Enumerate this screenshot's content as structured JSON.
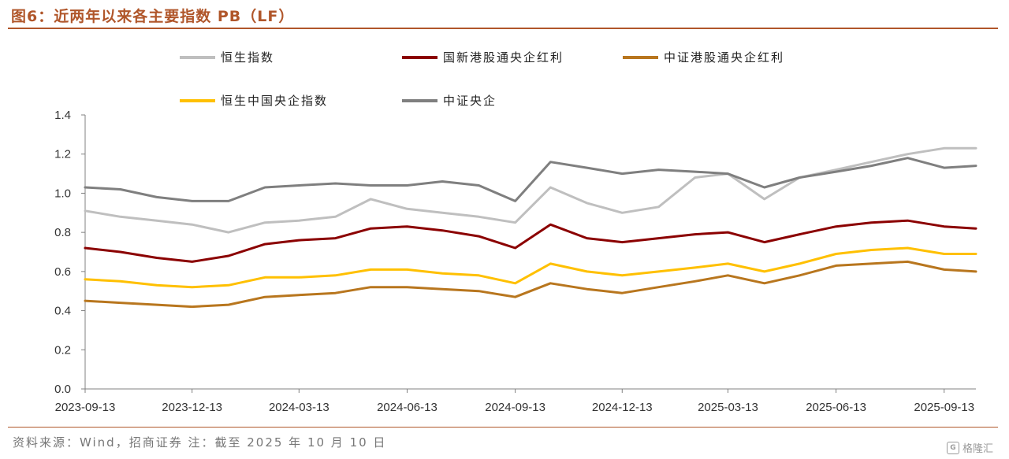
{
  "header": {
    "title": "图6：近两年以来各主要指数 PB（LF）"
  },
  "footer": {
    "source": "资料来源：Wind，招商证券    注：截至 2025 年 10 月 10 日",
    "watermark": "格隆汇"
  },
  "chart_data": {
    "type": "line",
    "x": [
      "2023-09-13",
      "2023-10-13",
      "2023-11-13",
      "2023-12-13",
      "2024-01-13",
      "2024-02-13",
      "2024-03-13",
      "2024-04-13",
      "2024-05-13",
      "2024-06-13",
      "2024-07-13",
      "2024-08-13",
      "2024-09-13",
      "2024-10-13",
      "2024-11-13",
      "2024-12-13",
      "2025-01-13",
      "2025-02-13",
      "2025-03-13",
      "2025-04-13",
      "2025-05-13",
      "2025-06-13",
      "2025-07-13",
      "2025-08-13",
      "2025-09-13",
      "2025-10-10"
    ],
    "x_tick_labels": [
      "2023-09-13",
      "2023-12-13",
      "2024-03-13",
      "2024-06-13",
      "2024-09-13",
      "2024-12-13",
      "2025-03-13",
      "2025-06-13",
      "2025-09-13"
    ],
    "ylim": [
      0.0,
      1.4
    ],
    "y_ticks": [
      "0.0",
      "0.2",
      "0.4",
      "0.6",
      "0.8",
      "1.0",
      "1.2",
      "1.4"
    ],
    "legend_placement": "top",
    "grid": false,
    "series": [
      {
        "name": "恒生指数",
        "color": "#BFBFBF",
        "values": [
          0.91,
          0.88,
          0.86,
          0.84,
          0.8,
          0.85,
          0.86,
          0.88,
          0.97,
          0.92,
          0.9,
          0.88,
          0.85,
          1.03,
          0.95,
          0.9,
          0.93,
          1.08,
          1.1,
          0.97,
          1.08,
          1.12,
          1.16,
          1.2,
          1.23,
          1.23
        ]
      },
      {
        "name": "国新港股通央企红利",
        "color": "#8B0000",
        "values": [
          0.72,
          0.7,
          0.67,
          0.65,
          0.68,
          0.74,
          0.76,
          0.77,
          0.82,
          0.83,
          0.81,
          0.78,
          0.72,
          0.84,
          0.77,
          0.75,
          0.77,
          0.79,
          0.8,
          0.75,
          0.79,
          0.83,
          0.85,
          0.86,
          0.83,
          0.82
        ]
      },
      {
        "name": "中证港股通央企红利",
        "color": "#B8761E",
        "values": [
          0.45,
          0.44,
          0.43,
          0.42,
          0.43,
          0.47,
          0.48,
          0.49,
          0.52,
          0.52,
          0.51,
          0.5,
          0.47,
          0.54,
          0.51,
          0.49,
          0.52,
          0.55,
          0.58,
          0.54,
          0.58,
          0.63,
          0.64,
          0.65,
          0.61,
          0.6
        ]
      },
      {
        "name": "恒生中国央企指数",
        "color": "#FFC000",
        "values": [
          0.56,
          0.55,
          0.53,
          0.52,
          0.53,
          0.57,
          0.57,
          0.58,
          0.61,
          0.61,
          0.59,
          0.58,
          0.54,
          0.64,
          0.6,
          0.58,
          0.6,
          0.62,
          0.64,
          0.6,
          0.64,
          0.69,
          0.71,
          0.72,
          0.69,
          0.69
        ]
      },
      {
        "name": "中证央企",
        "color": "#7F7F7F",
        "values": [
          1.03,
          1.02,
          0.98,
          0.96,
          0.96,
          1.03,
          1.04,
          1.05,
          1.04,
          1.04,
          1.06,
          1.04,
          0.96,
          1.16,
          1.13,
          1.1,
          1.12,
          1.11,
          1.1,
          1.03,
          1.08,
          1.11,
          1.14,
          1.18,
          1.13,
          1.14
        ]
      }
    ]
  }
}
